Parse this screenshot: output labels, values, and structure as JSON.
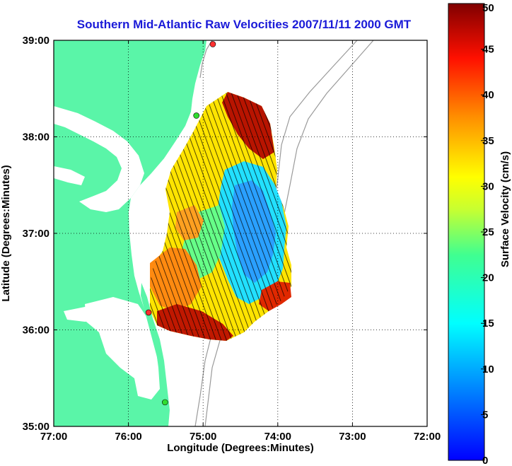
{
  "title": "Southern Mid-Atlantic Raw Velocities 2007/11/11 2000 GMT",
  "title_color": "#1a1ad8",
  "land_color": "#5af5a8",
  "map": {
    "xlabel": "Longitude (Degrees:Minutes)",
    "ylabel": "Latitude (Degrees:Minutes)",
    "lon_range": [
      -77,
      -72
    ],
    "lat_range": [
      35,
      39
    ],
    "lon_ticks": [
      {
        "value": -77,
        "label": "77:00"
      },
      {
        "value": -76,
        "label": "76:00"
      },
      {
        "value": -75,
        "label": "75:00"
      },
      {
        "value": -74,
        "label": "74:00"
      },
      {
        "value": -73,
        "label": "73:00"
      },
      {
        "value": -72,
        "label": "72:00"
      }
    ],
    "lat_ticks": [
      {
        "value": 39,
        "label": "39:00"
      },
      {
        "value": 38,
        "label": "38:00"
      },
      {
        "value": 37,
        "label": "37:00"
      },
      {
        "value": 36,
        "label": "36:00"
      },
      {
        "value": 35,
        "label": "35:00"
      }
    ],
    "grid": "dotted",
    "stations": [
      {
        "name": "station-north",
        "lon": -74.87,
        "lat": 38.96,
        "color": "#ff3030"
      },
      {
        "name": "station-delmarva",
        "lon": -75.09,
        "lat": 38.22,
        "color": "#30dd30"
      },
      {
        "name": "station-duck",
        "lon": -75.73,
        "lat": 36.18,
        "color": "#ff3030"
      },
      {
        "name": "station-hatteras",
        "lon": -75.51,
        "lat": 35.25,
        "color": "#30dd30"
      }
    ]
  },
  "colorbar": {
    "label": "Surface Velocity (cm/s)",
    "range": [
      0,
      50
    ],
    "ticks": [
      {
        "value": 0,
        "label": "0"
      },
      {
        "value": 5,
        "label": "5"
      },
      {
        "value": 10,
        "label": "10"
      },
      {
        "value": 15,
        "label": "15"
      },
      {
        "value": 20,
        "label": "20"
      },
      {
        "value": 25,
        "label": "25"
      },
      {
        "value": 30,
        "label": "30"
      },
      {
        "value": 35,
        "label": "35"
      },
      {
        "value": 40,
        "label": "40"
      },
      {
        "value": 45,
        "label": "45"
      },
      {
        "value": 50,
        "label": "50"
      }
    ],
    "colormap": "jet"
  }
}
